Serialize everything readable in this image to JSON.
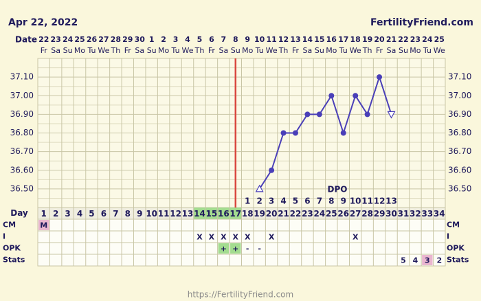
{
  "chart_data": {
    "type": "line",
    "title": "Apr 22, 2022",
    "source": "FertilityFriend.com",
    "footer": "https://FertilityFriend.com",
    "date_label": "Date",
    "day_label": "Day",
    "dates": [
      22,
      23,
      24,
      25,
      26,
      27,
      28,
      29,
      30,
      1,
      2,
      3,
      4,
      5,
      6,
      7,
      8,
      9,
      10,
      11,
      12,
      13,
      14,
      15,
      16,
      17,
      18,
      19,
      20,
      21,
      22,
      23,
      24,
      25
    ],
    "weekdays": [
      "Fr",
      "Sa",
      "Su",
      "Mo",
      "Tu",
      "We",
      "Th",
      "Fr",
      "Sa",
      "Su",
      "Mo",
      "Tu",
      "We",
      "Th",
      "Fr",
      "Sa",
      "Su",
      "Mo",
      "Tu",
      "We",
      "Th",
      "Fr",
      "Sa",
      "Su",
      "Mo",
      "Tu",
      "We",
      "Th",
      "Fr",
      "Sa",
      "Su",
      "Mo",
      "Tu",
      "We"
    ],
    "categories": [
      1,
      2,
      3,
      4,
      5,
      6,
      7,
      8,
      9,
      10,
      11,
      12,
      13,
      14,
      15,
      16,
      17,
      18,
      19,
      20,
      21,
      22,
      23,
      24,
      25,
      26,
      27,
      28,
      29,
      30,
      31,
      32,
      33,
      34
    ],
    "day_highlights": [
      {
        "day": 14,
        "color": "#a3dc8f"
      },
      {
        "day": 15,
        "color": "#a3dc8f"
      },
      {
        "day": 16,
        "color": "#a3dc8f"
      },
      {
        "day": 17,
        "color": "#a3dc8f"
      }
    ],
    "series": [
      {
        "color": "#4a3fb8",
        "values": [
          null,
          null,
          null,
          null,
          null,
          null,
          null,
          null,
          null,
          null,
          null,
          null,
          null,
          null,
          null,
          null,
          null,
          null,
          36.5,
          36.6,
          36.8,
          36.8,
          36.9,
          36.9,
          37.0,
          36.8,
          37.0,
          36.9,
          37.1,
          36.9,
          null,
          null,
          null,
          null
        ]
      }
    ],
    "open_markers": [
      {
        "day": 19,
        "shape": "triangle-up"
      },
      {
        "day": 30,
        "shape": "triangle-down"
      }
    ],
    "ovulation_day": 17,
    "ovulation_color": "#d9473f",
    "dpo_label": "DPO",
    "dpo": [
      null,
      null,
      null,
      null,
      null,
      null,
      null,
      null,
      null,
      null,
      null,
      null,
      null,
      null,
      null,
      null,
      null,
      1,
      2,
      3,
      4,
      5,
      6,
      7,
      8,
      9,
      10,
      11,
      12,
      13,
      null,
      null,
      null,
      null
    ],
    "ylim": [
      36.4,
      37.2
    ],
    "yticks": [
      {
        "value": 37.1,
        "label": "37.10"
      },
      {
        "value": 37.0,
        "label": "37.00"
      },
      {
        "value": 36.9,
        "label": "36.90"
      },
      {
        "value": 36.8,
        "label": "36.80"
      },
      {
        "value": 36.7,
        "label": "36.70"
      },
      {
        "value": 36.6,
        "label": "36.60"
      },
      {
        "value": 36.5,
        "label": "36.50"
      }
    ],
    "ygrid_minor": [
      37.15,
      37.05,
      36.95,
      36.85,
      36.75,
      36.65,
      36.55,
      36.45
    ],
    "rows": [
      {
        "label": "CM",
        "cells": [
          "M",
          null,
          null,
          null,
          null,
          null,
          null,
          null,
          null,
          null,
          null,
          null,
          null,
          null,
          null,
          null,
          null,
          null,
          null,
          null,
          null,
          null,
          null,
          null,
          null,
          null,
          null,
          null,
          null,
          null,
          null,
          null,
          null,
          null
        ],
        "highlights": [
          {
            "day": 1,
            "color": "#eab6cf"
          }
        ]
      },
      {
        "label": "I",
        "cells": [
          null,
          null,
          null,
          null,
          null,
          null,
          null,
          null,
          null,
          null,
          null,
          null,
          null,
          "X",
          "X",
          "X",
          "X",
          "X",
          null,
          "X",
          null,
          null,
          null,
          null,
          null,
          null,
          "X",
          null,
          null,
          null,
          null,
          null,
          null,
          null
        ],
        "highlights": []
      },
      {
        "label": "OPK",
        "cells": [
          null,
          null,
          null,
          null,
          null,
          null,
          null,
          null,
          null,
          null,
          null,
          null,
          null,
          null,
          null,
          "+",
          "+",
          "-",
          "-",
          null,
          null,
          null,
          null,
          null,
          null,
          null,
          null,
          null,
          null,
          null,
          null,
          null,
          null,
          null
        ],
        "highlights": [
          {
            "day": 16,
            "color": "#a3dc8f"
          },
          {
            "day": 17,
            "color": "#a3dc8f"
          }
        ]
      },
      {
        "label": "Stats",
        "cells": [
          null,
          null,
          null,
          null,
          null,
          null,
          null,
          null,
          null,
          null,
          null,
          null,
          null,
          null,
          null,
          null,
          null,
          null,
          null,
          null,
          null,
          null,
          null,
          null,
          null,
          null,
          null,
          null,
          null,
          null,
          5,
          4,
          3,
          2
        ],
        "highlights": [
          {
            "day": 33,
            "color": "#eab6cf"
          }
        ]
      }
    ]
  }
}
